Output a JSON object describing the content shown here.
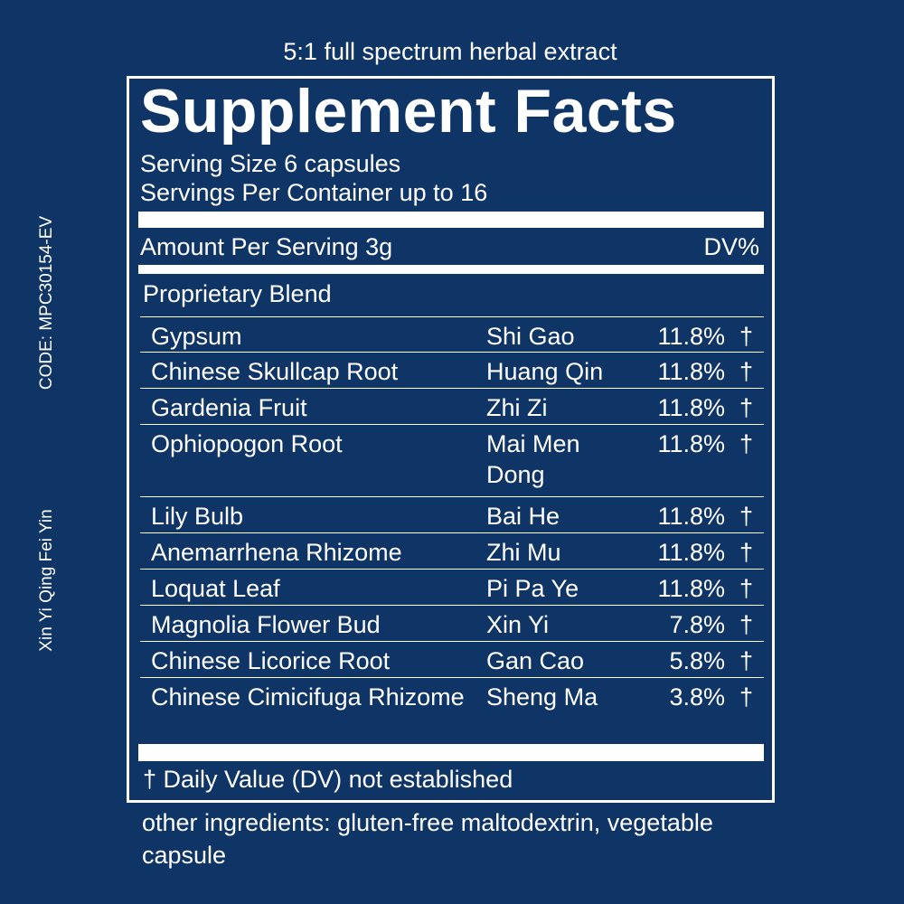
{
  "top_note": "5:1 full spectrum herbal extract",
  "title": "Supplement Facts",
  "serving_size": "Serving Size 6 capsules",
  "servings_per_container": "Servings Per Container up to 16",
  "amount_per_serving": "Amount Per Serving 3g",
  "dv_header": "DV%",
  "blend_title": "Proprietary Blend",
  "rows": [
    {
      "name": "Gypsum",
      "pinyin": "Shi Gao",
      "dv": "11.8%",
      "mark": "†"
    },
    {
      "name": "Chinese Skullcap Root",
      "pinyin": "Huang Qin",
      "dv": "11.8%",
      "mark": "†"
    },
    {
      "name": "Gardenia Fruit",
      "pinyin": "Zhi Zi",
      "dv": "11.8%",
      "mark": "†"
    },
    {
      "name": "Ophiopogon Root",
      "pinyin": "Mai Men Dong",
      "dv": "11.8%",
      "mark": "†"
    },
    {
      "name": "Lily Bulb",
      "pinyin": "Bai He",
      "dv": "11.8%",
      "mark": "†"
    },
    {
      "name": "Anemarrhena Rhizome",
      "pinyin": "Zhi Mu",
      "dv": "11.8%",
      "mark": "†"
    },
    {
      "name": "Loquat Leaf",
      "pinyin": "Pi Pa Ye",
      "dv": "11.8%",
      "mark": "†"
    },
    {
      "name": "Magnolia Flower Bud",
      "pinyin": "Xin Yi",
      "dv": "7.8%",
      "mark": "†"
    },
    {
      "name": "Chinese Licorice Root",
      "pinyin": "Gan Cao",
      "dv": "5.8%",
      "mark": "†"
    },
    {
      "name": "Chinese Cimicifuga Rhizome",
      "pinyin": "Sheng Ma",
      "dv": "3.8%",
      "mark": "†"
    }
  ],
  "footnote": "† Daily Value (DV) not established",
  "other_ingredients": "other ingredients: gluten-free maltodextrin, vegetable capsule",
  "code": "CODE: MPC30154-EV",
  "formula_name": "Xin Yi Qing Fei Yin"
}
